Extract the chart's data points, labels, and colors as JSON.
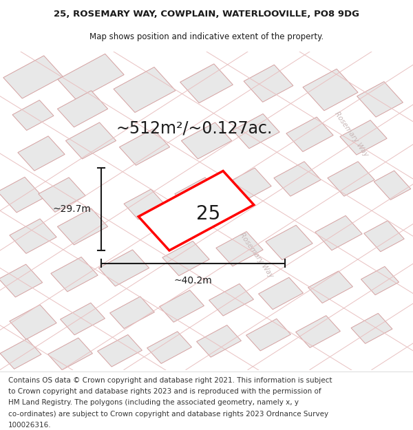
{
  "title_line1": "25, ROSEMARY WAY, COWPLAIN, WATERLOOVILLE, PO8 9DG",
  "title_line2": "Map shows position and indicative extent of the property.",
  "area_text": "~512m²/~0.127ac.",
  "plot_number": "25",
  "dim_width": "~40.2m",
  "dim_height": "~29.7m",
  "street_label_diag": "Rosemary Way",
  "footer_lines": [
    "Contains OS data © Crown copyright and database right 2021. This information is subject",
    "to Crown copyright and database rights 2023 and is reproduced with the permission of",
    "HM Land Registry. The polygons (including the associated geometry, namely x, y",
    "co-ordinates) are subject to Crown copyright and database rights 2023 Ordnance Survey",
    "100026316."
  ],
  "map_bg": "#f2f2f2",
  "block_fill": "#e0e0e0",
  "block_edge": "#d4a0a0",
  "road_col": "#e8c0c0",
  "highlight_edge": "#ff0000",
  "highlight_fill": "#ffffff",
  "dim_line_color": "#1a1a1a",
  "text_color": "#1a1a1a",
  "street_text_color": "#c8b8b8",
  "title_font_size": 9.5,
  "subtitle_font_size": 8.5,
  "area_font_size": 17,
  "plot_num_font_size": 20,
  "dim_font_size": 10,
  "footer_font_size": 7.5,
  "street_font_size": 7.5
}
